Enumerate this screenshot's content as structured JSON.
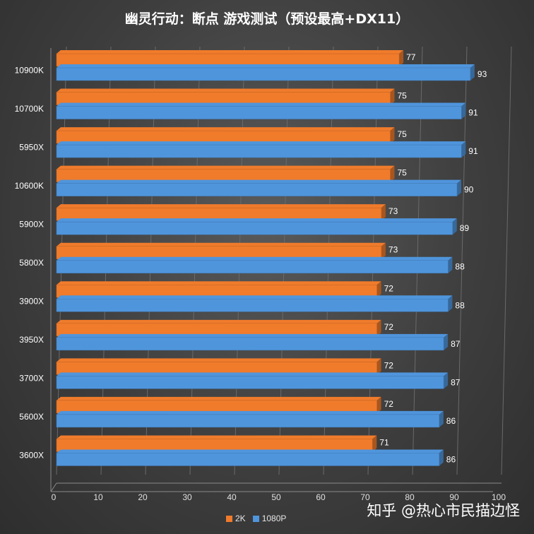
{
  "chart_data": {
    "type": "bar",
    "orientation": "horizontal",
    "title": "幽灵行动：断点 游戏测试（预设最高+DX11）",
    "categories": [
      "10900K",
      "10700K",
      "5950X",
      "10600K",
      "5900X",
      "5800X",
      "3900X",
      "3950X",
      "3700X",
      "5600X",
      "3600X"
    ],
    "series": [
      {
        "name": "2K",
        "color": "#f07b2b",
        "values": [
          77,
          75,
          75,
          75,
          73,
          73,
          72,
          72,
          72,
          72,
          71
        ]
      },
      {
        "name": "1080P",
        "color": "#4f95dc",
        "values": [
          93,
          91,
          91,
          90,
          89,
          88,
          88,
          87,
          87,
          86,
          86
        ]
      }
    ],
    "xlim": [
      0,
      100
    ],
    "xticks": [
      0,
      10,
      20,
      30,
      40,
      50,
      60,
      70,
      80,
      90,
      100
    ],
    "grid": true,
    "legend_position": "bottom"
  },
  "watermark": "知乎 @热心市民描边怪"
}
